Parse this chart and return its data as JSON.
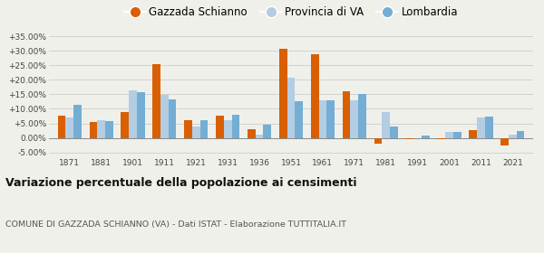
{
  "years": [
    1871,
    1881,
    1901,
    1911,
    1921,
    1931,
    1936,
    1951,
    1961,
    1971,
    1981,
    1991,
    2001,
    2011,
    2021
  ],
  "gazzada": [
    7.8,
    5.5,
    8.8,
    25.5,
    6.0,
    7.8,
    3.0,
    30.7,
    28.8,
    16.0,
    -2.0,
    -0.5,
    -0.5,
    2.8,
    -2.5
  ],
  "provincia": [
    7.0,
    6.0,
    16.5,
    14.8,
    3.8,
    6.0,
    1.0,
    20.8,
    13.0,
    13.0,
    8.8,
    0.0,
    2.0,
    7.2,
    1.0
  ],
  "lombardia": [
    11.5,
    5.8,
    15.8,
    13.2,
    6.0,
    8.0,
    4.5,
    12.5,
    12.8,
    15.2,
    4.0,
    0.8,
    2.2,
    7.5,
    2.5
  ],
  "gazzada_color": "#d95f02",
  "provincia_color": "#b3cde3",
  "lombardia_color": "#74aed4",
  "title": "Variazione percentuale della popolazione ai censimenti",
  "subtitle": "COMUNE DI GAZZADA SCHIANNO (VA) - Dati ISTAT - Elaborazione TUTTITALIA.IT",
  "legend_labels": [
    "Gazzada Schianno",
    "Provincia di VA",
    "Lombardia"
  ],
  "ylim": [
    -6.5,
    37
  ],
  "yticks": [
    -5.0,
    0.0,
    5.0,
    10.0,
    15.0,
    20.0,
    25.0,
    30.0,
    35.0
  ],
  "bg_color": "#f0f0eb",
  "bar_width": 0.25
}
